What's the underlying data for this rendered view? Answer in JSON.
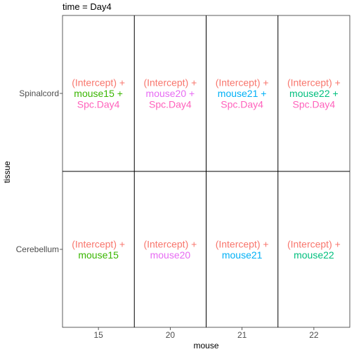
{
  "chart_data": {
    "type": "table",
    "title": "time = Day4",
    "xlabel": "mouse",
    "ylabel": "tissue",
    "x_categories": [
      "15",
      "20",
      "21",
      "22"
    ],
    "y_categories": [
      "Spinalcord",
      "Cerebellum"
    ],
    "grid": true,
    "colors": {
      "intercept": "#F8766D",
      "mouse15": "#39B600",
      "mouse20": "#E76BF3",
      "mouse21": "#00B0F6",
      "mouse22": "#00BF7D",
      "spc_day4": "#FF62BC",
      "panel_border": "#333333",
      "cell_line": "#000000",
      "axis_text": "#4D4D4D",
      "title_text": "#000000"
    },
    "cells": [
      {
        "row": 0,
        "col": 0,
        "lines": [
          {
            "text": "(Intercept) +",
            "color_key": "intercept"
          },
          {
            "text": "mouse15 +",
            "color_key": "mouse15"
          },
          {
            "text": "Spc.Day4",
            "color_key": "spc_day4"
          }
        ]
      },
      {
        "row": 0,
        "col": 1,
        "lines": [
          {
            "text": "(Intercept) +",
            "color_key": "intercept"
          },
          {
            "text": "mouse20 +",
            "color_key": "mouse20"
          },
          {
            "text": "Spc.Day4",
            "color_key": "spc_day4"
          }
        ]
      },
      {
        "row": 0,
        "col": 2,
        "lines": [
          {
            "text": "(Intercept) +",
            "color_key": "intercept"
          },
          {
            "text": "mouse21 +",
            "color_key": "mouse21"
          },
          {
            "text": "Spc.Day4",
            "color_key": "spc_day4"
          }
        ]
      },
      {
        "row": 0,
        "col": 3,
        "lines": [
          {
            "text": "(Intercept) +",
            "color_key": "intercept"
          },
          {
            "text": "mouse22 +",
            "color_key": "mouse22"
          },
          {
            "text": "Spc.Day4",
            "color_key": "spc_day4"
          }
        ]
      },
      {
        "row": 1,
        "col": 0,
        "lines": [
          {
            "text": "(Intercept) +",
            "color_key": "intercept"
          },
          {
            "text": "mouse15",
            "color_key": "mouse15"
          }
        ]
      },
      {
        "row": 1,
        "col": 1,
        "lines": [
          {
            "text": "(Intercept) +",
            "color_key": "intercept"
          },
          {
            "text": "mouse20",
            "color_key": "mouse20"
          }
        ]
      },
      {
        "row": 1,
        "col": 2,
        "lines": [
          {
            "text": "(Intercept) +",
            "color_key": "intercept"
          },
          {
            "text": "mouse21",
            "color_key": "mouse21"
          }
        ]
      },
      {
        "row": 1,
        "col": 3,
        "lines": [
          {
            "text": "(Intercept) +",
            "color_key": "intercept"
          },
          {
            "text": "mouse22",
            "color_key": "mouse22"
          }
        ]
      }
    ]
  }
}
